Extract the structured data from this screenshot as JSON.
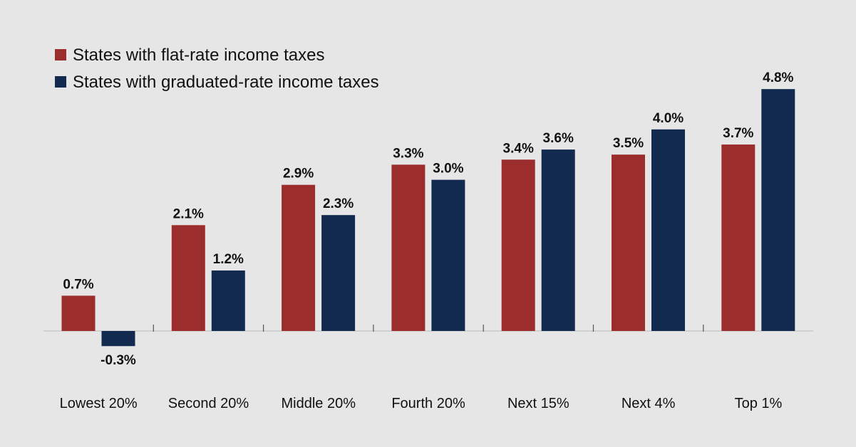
{
  "chart_data": {
    "type": "bar",
    "title": "",
    "xlabel": "",
    "ylabel": "",
    "ylim": [
      -0.5,
      5.0
    ],
    "grid": false,
    "legend_position": "top-left",
    "categories": [
      "Lowest 20%",
      "Second 20%",
      "Middle 20%",
      "Fourth 20%",
      "Next 15%",
      "Next 4%",
      "Top 1%"
    ],
    "series": [
      {
        "name": "States with flat-rate income taxes",
        "color": "#9b2d2d",
        "values": [
          0.7,
          2.1,
          2.9,
          3.3,
          3.4,
          3.5,
          3.7
        ],
        "labels": [
          "0.7%",
          "2.1%",
          "2.9%",
          "3.3%",
          "3.4%",
          "3.5%",
          "3.7%"
        ]
      },
      {
        "name": "States with graduated-rate income taxes",
        "color": "#122a4f",
        "values": [
          -0.3,
          1.2,
          2.3,
          3.0,
          3.6,
          4.0,
          4.8
        ],
        "labels": [
          "-0.3%",
          "1.2%",
          "2.3%",
          "3.0%",
          "3.6%",
          "4.0%",
          "4.8%"
        ]
      }
    ]
  },
  "colors": {
    "background": "#e6e6e6",
    "axis": "#c8c8c8",
    "tick": "#555555",
    "text": "#111111"
  }
}
